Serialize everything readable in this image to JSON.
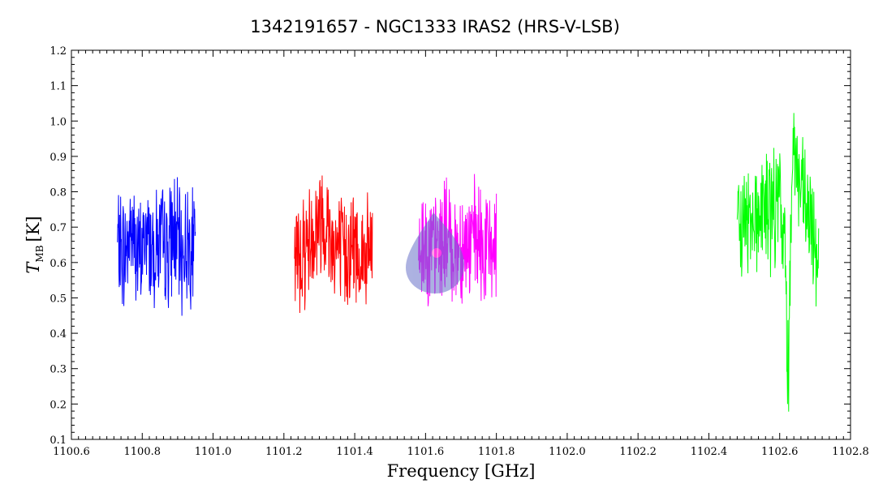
{
  "chart_data": {
    "type": "line",
    "title": "1342191657 - NGC1333 IRAS2 (HRS-V-LSB)",
    "xlabel": "Frequency [GHz]",
    "ylabel_main": "T",
    "ylabel_sub": "MB",
    "ylabel_unit": "[K]",
    "xlim": [
      1100.6,
      1102.8
    ],
    "ylim": [
      0.1,
      1.2
    ],
    "x_ticks": [
      "1100.6",
      "1100.8",
      "1101.0",
      "1101.2",
      "1101.4",
      "1101.6",
      "1101.8",
      "1102.0",
      "1102.2",
      "1102.4",
      "1102.6",
      "1102.8"
    ],
    "y_ticks": [
      "0.1",
      "0.2",
      "0.3",
      "0.4",
      "0.5",
      "0.6",
      "0.7",
      "0.8",
      "0.9",
      "1.0",
      "1.1",
      "1.2"
    ],
    "grid": false,
    "series": [
      {
        "color": "#0000ff",
        "x": [
          1100.73,
          1100.75,
          1100.77,
          1100.79,
          1100.81,
          1100.83,
          1100.85,
          1100.87,
          1100.89,
          1100.91,
          1100.93,
          1100.95
        ],
        "y": [
          0.65,
          0.62,
          0.7,
          0.6,
          0.68,
          0.64,
          0.66,
          0.63,
          0.69,
          0.62,
          0.66,
          0.64
        ]
      },
      {
        "color": "#ff0000",
        "x": [
          1101.23,
          1101.25,
          1101.27,
          1101.29,
          1101.31,
          1101.33,
          1101.35,
          1101.37,
          1101.39,
          1101.41,
          1101.43,
          1101.45
        ],
        "y": [
          0.6,
          0.63,
          0.66,
          0.7,
          0.74,
          0.68,
          0.64,
          0.62,
          0.65,
          0.63,
          0.61,
          0.64
        ]
      },
      {
        "color": "#ff00ff",
        "x": [
          1101.58,
          1101.6,
          1101.62,
          1101.64,
          1101.66,
          1101.68,
          1101.7,
          1101.72,
          1101.74,
          1101.76,
          1101.78,
          1101.8
        ],
        "y": [
          0.64,
          0.66,
          0.62,
          0.65,
          0.68,
          0.63,
          0.66,
          0.64,
          0.67,
          0.63,
          0.65,
          0.64
        ]
      },
      {
        "color": "#00ff00",
        "x": [
          1102.48,
          1102.5,
          1102.52,
          1102.54,
          1102.56,
          1102.58,
          1102.6,
          1102.615,
          1102.625,
          1102.635,
          1102.65,
          1102.67,
          1102.69,
          1102.71
        ],
        "y": [
          0.66,
          0.72,
          0.75,
          0.73,
          0.76,
          0.74,
          0.78,
          0.62,
          0.25,
          0.98,
          0.85,
          0.76,
          0.68,
          0.63
        ]
      }
    ]
  },
  "watermark": {
    "name": "drop-pin-logo",
    "fill": "#6a73c9"
  }
}
